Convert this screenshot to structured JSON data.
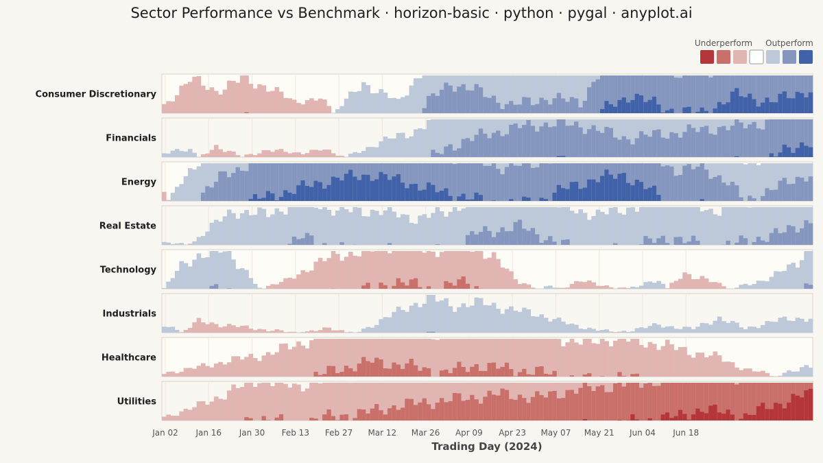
{
  "chart_data": {
    "type": "horizon",
    "title": "Sector Performance vs Benchmark · horizon-basic · python · pygal · anyplot.ai",
    "xlabel": "Trading Day (2024)",
    "ylabel": "",
    "x_ticks": [
      "Jan 02",
      "Jan 16",
      "Jan 30",
      "Feb 13",
      "Feb 27",
      "Mar 12",
      "Mar 26",
      "Apr 09",
      "Apr 23",
      "May 07",
      "May 21",
      "Jun 04",
      "Jun 18"
    ],
    "legend": {
      "placement": "top-right",
      "underperform_label": "Underperform",
      "outperform_label": "Outperform"
    },
    "band_levels": 3,
    "colors": {
      "negative": [
        "#e1b5b2",
        "#c9706b",
        "#b5363a"
      ],
      "positive": [
        "#bdc8d9",
        "#8597bf",
        "#4162a8"
      ],
      "neutral": "#ffffff"
    },
    "series": [
      {
        "name": "Consumer Discretionary",
        "keys": [
          [
            0,
            -0.2
          ],
          [
            6,
            -0.9
          ],
          [
            12,
            -0.6
          ],
          [
            18,
            -0.9
          ],
          [
            24,
            -0.7
          ],
          [
            30,
            -0.3
          ],
          [
            36,
            -0.4
          ],
          [
            40,
            0.1
          ],
          [
            46,
            0.8
          ],
          [
            54,
            0.3
          ],
          [
            60,
            1.2
          ],
          [
            66,
            1.8
          ],
          [
            72,
            1.6
          ],
          [
            80,
            1.2
          ],
          [
            88,
            1.4
          ],
          [
            96,
            1.3
          ],
          [
            100,
            2.0
          ],
          [
            108,
            2.5
          ],
          [
            116,
            2.1
          ],
          [
            124,
            2.0
          ],
          [
            132,
            2.5
          ],
          [
            140,
            2.3
          ],
          [
            148,
            2.6
          ]
        ]
      },
      {
        "name": "Financials",
        "keys": [
          [
            0,
            0.1
          ],
          [
            6,
            0.2
          ],
          [
            12,
            -0.3
          ],
          [
            18,
            0.0
          ],
          [
            24,
            -0.2
          ],
          [
            30,
            -0.1
          ],
          [
            36,
            -0.2
          ],
          [
            42,
            0.0
          ],
          [
            50,
            0.4
          ],
          [
            58,
            0.7
          ],
          [
            66,
            1.3
          ],
          [
            74,
            1.6
          ],
          [
            82,
            1.8
          ],
          [
            90,
            1.9
          ],
          [
            98,
            1.8
          ],
          [
            106,
            1.5
          ],
          [
            114,
            1.6
          ],
          [
            122,
            1.7
          ],
          [
            130,
            1.8
          ],
          [
            138,
            1.9
          ],
          [
            144,
            2.2
          ],
          [
            148,
            2.4
          ]
        ]
      },
      {
        "name": "Energy",
        "keys": [
          [
            0,
            -0.2
          ],
          [
            4,
            0.5
          ],
          [
            8,
            1.1
          ],
          [
            14,
            1.7
          ],
          [
            20,
            2.0
          ],
          [
            30,
            2.3
          ],
          [
            40,
            2.6
          ],
          [
            48,
            2.7
          ],
          [
            56,
            2.5
          ],
          [
            62,
            2.3
          ],
          [
            70,
            2.1
          ],
          [
            78,
            1.9
          ],
          [
            86,
            2.0
          ],
          [
            94,
            2.4
          ],
          [
            100,
            2.6
          ],
          [
            106,
            2.7
          ],
          [
            112,
            2.3
          ],
          [
            118,
            1.8
          ],
          [
            124,
            1.9
          ],
          [
            130,
            1.5
          ],
          [
            134,
            1.0
          ],
          [
            140,
            1.3
          ],
          [
            148,
            1.7
          ]
        ]
      },
      {
        "name": "Real Estate",
        "keys": [
          [
            0,
            0.05
          ],
          [
            6,
            0.0
          ],
          [
            10,
            0.4
          ],
          [
            16,
            0.9
          ],
          [
            24,
            0.8
          ],
          [
            32,
            1.2
          ],
          [
            40,
            0.9
          ],
          [
            50,
            0.9
          ],
          [
            58,
            0.7
          ],
          [
            66,
            0.9
          ],
          [
            72,
            1.3
          ],
          [
            82,
            1.5
          ],
          [
            92,
            1.0
          ],
          [
            100,
            0.8
          ],
          [
            108,
            1.0
          ],
          [
            118,
            1.2
          ],
          [
            126,
            0.9
          ],
          [
            134,
            1.1
          ],
          [
            142,
            1.3
          ],
          [
            148,
            1.6
          ]
        ]
      },
      {
        "name": "Technology",
        "keys": [
          [
            0,
            0.0
          ],
          [
            4,
            0.6
          ],
          [
            8,
            0.9
          ],
          [
            14,
            1.0
          ],
          [
            18,
            0.6
          ],
          [
            22,
            0.0
          ],
          [
            28,
            -0.2
          ],
          [
            34,
            -0.6
          ],
          [
            40,
            -0.9
          ],
          [
            48,
            -1.0
          ],
          [
            54,
            -1.2
          ],
          [
            62,
            -1.0
          ],
          [
            70,
            -1.2
          ],
          [
            76,
            -0.8
          ],
          [
            82,
            -0.2
          ],
          [
            88,
            0.1
          ],
          [
            96,
            -0.2
          ],
          [
            106,
            0.0
          ],
          [
            114,
            0.2
          ],
          [
            120,
            -0.4
          ],
          [
            124,
            -0.3
          ],
          [
            128,
            -0.1
          ],
          [
            134,
            0.1
          ],
          [
            140,
            0.3
          ],
          [
            146,
            0.7
          ],
          [
            148,
            1.1
          ]
        ]
      },
      {
        "name": "Industrials",
        "keys": [
          [
            0,
            0.2
          ],
          [
            4,
            0.0
          ],
          [
            8,
            -0.3
          ],
          [
            14,
            -0.2
          ],
          [
            22,
            -0.1
          ],
          [
            30,
            0.0
          ],
          [
            38,
            -0.1
          ],
          [
            44,
            0.0
          ],
          [
            50,
            0.3
          ],
          [
            56,
            0.7
          ],
          [
            62,
            0.9
          ],
          [
            68,
            0.7
          ],
          [
            74,
            0.8
          ],
          [
            80,
            0.6
          ],
          [
            86,
            0.5
          ],
          [
            94,
            0.2
          ],
          [
            104,
            0.0
          ],
          [
            114,
            0.2
          ],
          [
            122,
            0.1
          ],
          [
            128,
            0.4
          ],
          [
            134,
            0.1
          ],
          [
            140,
            0.3
          ],
          [
            148,
            0.4
          ]
        ]
      },
      {
        "name": "Healthcare",
        "keys": [
          [
            0,
            -0.1
          ],
          [
            6,
            -0.2
          ],
          [
            14,
            -0.4
          ],
          [
            24,
            -0.6
          ],
          [
            32,
            -0.9
          ],
          [
            40,
            -1.2
          ],
          [
            48,
            -1.4
          ],
          [
            56,
            -1.3
          ],
          [
            64,
            -1.1
          ],
          [
            72,
            -1.3
          ],
          [
            80,
            -1.2
          ],
          [
            88,
            -1.1
          ],
          [
            96,
            -0.9
          ],
          [
            104,
            -1.0
          ],
          [
            112,
            -0.9
          ],
          [
            120,
            -0.7
          ],
          [
            128,
            -0.5
          ],
          [
            134,
            -0.2
          ],
          [
            140,
            -0.05
          ],
          [
            146,
            0.2
          ],
          [
            148,
            0.3
          ]
        ]
      },
      {
        "name": "Utilities",
        "keys": [
          [
            0,
            -0.1
          ],
          [
            6,
            -0.3
          ],
          [
            14,
            -0.7
          ],
          [
            22,
            -1.1
          ],
          [
            30,
            -0.9
          ],
          [
            38,
            -1.1
          ],
          [
            46,
            -1.2
          ],
          [
            54,
            -1.4
          ],
          [
            62,
            -1.5
          ],
          [
            70,
            -1.6
          ],
          [
            78,
            -1.7
          ],
          [
            86,
            -1.6
          ],
          [
            94,
            -1.8
          ],
          [
            102,
            -1.9
          ],
          [
            110,
            -2.0
          ],
          [
            118,
            -2.1
          ],
          [
            124,
            -2.3
          ],
          [
            130,
            -2.2
          ],
          [
            134,
            -2.1
          ],
          [
            140,
            -2.4
          ],
          [
            146,
            -2.6
          ],
          [
            148,
            -2.7
          ]
        ]
      }
    ]
  }
}
